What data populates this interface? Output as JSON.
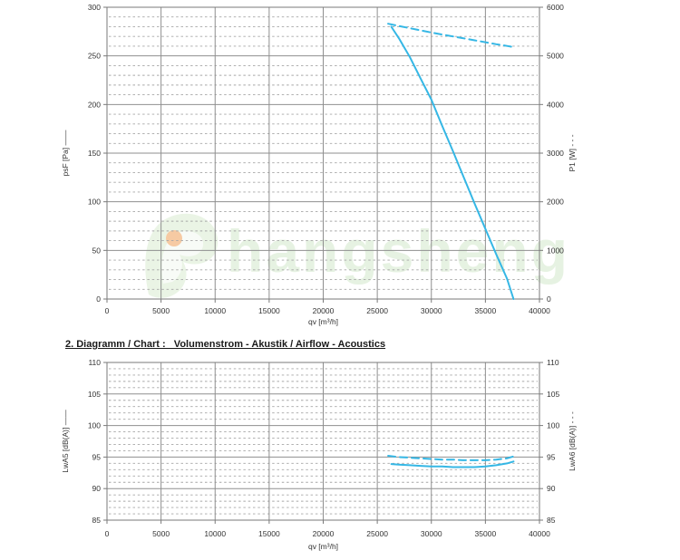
{
  "watermark": {
    "text": "hangsheng",
    "text_color": "#d3e8cb",
    "accent_color": "#f0a058"
  },
  "chart_data": [
    {
      "type": "line",
      "name": "airflow-pressure-chart",
      "title": "",
      "xlabel": "qv [m³/h]",
      "x_axis": {
        "min": 0,
        "max": 40000,
        "major": 5000
      },
      "left_axis": {
        "label": "psF [Pa]",
        "hint": "——",
        "min": 0,
        "max": 300,
        "major": 50,
        "minor": 10
      },
      "right_axis": {
        "label": "P1 [W]",
        "hint": "- - -",
        "min": 0,
        "max": 6000,
        "major": 1000
      },
      "grid": "major-solid-minor-dashed",
      "curve_color": "#35b7e5",
      "series": [
        {
          "name": "psF",
          "axis": "left",
          "line": "solid",
          "points": [
            [
              26300,
              280
            ],
            [
              27000,
              268
            ],
            [
              28000,
              249
            ],
            [
              29000,
              227
            ],
            [
              30000,
              205
            ],
            [
              31000,
              178
            ],
            [
              32000,
              152
            ],
            [
              33000,
              125
            ],
            [
              34000,
              98
            ],
            [
              35000,
              72
            ],
            [
              36000,
              46
            ],
            [
              37000,
              21
            ],
            [
              37600,
              0
            ]
          ]
        },
        {
          "name": "P1",
          "axis": "right",
          "line": "dashed",
          "points": [
            [
              26000,
              5660
            ],
            [
              27000,
              5615
            ],
            [
              28000,
              5570
            ],
            [
              29000,
              5525
            ],
            [
              30000,
              5480
            ],
            [
              31000,
              5440
            ],
            [
              32000,
              5400
            ],
            [
              33000,
              5360
            ],
            [
              34000,
              5320
            ],
            [
              35000,
              5280
            ],
            [
              36000,
              5240
            ],
            [
              37000,
              5205
            ],
            [
              37600,
              5180
            ]
          ]
        }
      ]
    },
    {
      "type": "line",
      "name": "airflow-acoustics-chart",
      "title": "2. Diagramm / Chart :   Volumenstrom - Akustik / Airflow - Acoustics",
      "xlabel": "qv [m³/h]",
      "x_axis": {
        "min": 0,
        "max": 40000,
        "major": 5000
      },
      "left_axis": {
        "label": "LwA5 [dB(A)]",
        "hint": "——",
        "min": 85,
        "max": 110,
        "major": 5,
        "minor": 1
      },
      "right_axis": {
        "label": "LwA6 [dB(A)]",
        "hint": "- - -",
        "min": 85,
        "max": 110,
        "major": 5
      },
      "grid": "major-solid-minor-dashed",
      "curve_color": "#35b7e5",
      "series": [
        {
          "name": "LwA5",
          "axis": "left",
          "line": "solid",
          "points": [
            [
              26300,
              93.9
            ],
            [
              27000,
              93.8
            ],
            [
              28000,
              93.7
            ],
            [
              29000,
              93.6
            ],
            [
              30000,
              93.5
            ],
            [
              31000,
              93.5
            ],
            [
              32000,
              93.4
            ],
            [
              33000,
              93.4
            ],
            [
              34000,
              93.4
            ],
            [
              35000,
              93.5
            ],
            [
              36000,
              93.7
            ],
            [
              37000,
              94.0
            ],
            [
              37600,
              94.3
            ]
          ]
        },
        {
          "name": "LwA6",
          "axis": "right",
          "line": "dashed",
          "points": [
            [
              26000,
              95.2
            ],
            [
              27000,
              95.0
            ],
            [
              28000,
              94.9
            ],
            [
              29000,
              94.8
            ],
            [
              30000,
              94.7
            ],
            [
              31000,
              94.6
            ],
            [
              32000,
              94.6
            ],
            [
              33000,
              94.5
            ],
            [
              34000,
              94.5
            ],
            [
              35000,
              94.5
            ],
            [
              36000,
              94.6
            ],
            [
              37000,
              94.8
            ],
            [
              37600,
              95.1
            ]
          ]
        }
      ]
    }
  ],
  "style": {
    "grid_major_color": "#8f8f8f",
    "grid_minor_color": "#a6a6a6",
    "axis_color": "#7a7a7a",
    "text_color": "#333333"
  }
}
